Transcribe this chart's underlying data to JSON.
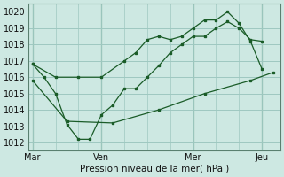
{
  "bg_color": "#cde8e2",
  "grid_color": "#9ec8c0",
  "line_color": "#1a5c28",
  "title": "Pression niveau de la mer( hPa )",
  "xtick_labels": [
    "Mar",
    "Ven",
    "Mer",
    "Jeu"
  ],
  "xtick_positions": [
    0,
    3,
    7,
    10
  ],
  "ylim": [
    1011.5,
    1020.5
  ],
  "yticks": [
    1012,
    1013,
    1014,
    1015,
    1016,
    1017,
    1018,
    1019,
    1020
  ],
  "xlim": [
    -0.2,
    10.8
  ],
  "line1_x": [
    0,
    0.5,
    1.0,
    1.5,
    2.0,
    2.5,
    3.0,
    3.5,
    4.0,
    4.5,
    5.0,
    5.5,
    6.0,
    6.5,
    7.0,
    7.5,
    8.0,
    8.5,
    9.0,
    9.5,
    10.0
  ],
  "line1_y": [
    1016.8,
    1016.0,
    1015.0,
    1013.1,
    1012.2,
    1012.2,
    1013.7,
    1014.3,
    1015.3,
    1015.3,
    1016.0,
    1016.7,
    1017.5,
    1018.0,
    1018.5,
    1018.5,
    1019.0,
    1019.4,
    1019.0,
    1018.3,
    1018.2
  ],
  "line2_x": [
    0,
    1.0,
    2.0,
    3.0,
    4.0,
    4.5,
    5.0,
    5.5,
    6.0,
    6.5,
    7.0,
    7.5,
    8.0,
    8.5,
    9.0,
    9.5,
    10.0
  ],
  "line2_y": [
    1016.8,
    1016.0,
    1016.0,
    1016.0,
    1017.0,
    1017.5,
    1018.3,
    1018.5,
    1018.3,
    1018.5,
    1019.0,
    1019.5,
    1019.5,
    1020.0,
    1019.3,
    1018.2,
    1016.5
  ],
  "line3_x": [
    0,
    1.5,
    3.5,
    5.5,
    7.5,
    9.5,
    10.5
  ],
  "line3_y": [
    1015.8,
    1013.3,
    1013.2,
    1014.0,
    1015.0,
    1015.8,
    1016.3
  ]
}
